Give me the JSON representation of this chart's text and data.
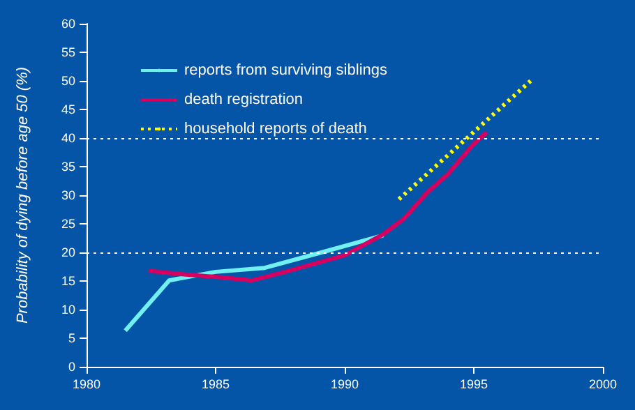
{
  "chart_data": {
    "type": "line",
    "ylabel": "Probability of dying before age 50 (%)",
    "xlim": [
      1980,
      2000
    ],
    "xticks": [
      1980,
      1985,
      1990,
      1995,
      2000
    ],
    "ylim": [
      0,
      60
    ],
    "yticks": [
      0,
      5,
      10,
      15,
      20,
      25,
      30,
      35,
      40,
      45,
      50,
      55,
      60
    ],
    "legend": "top left",
    "marker": "none",
    "grid": false,
    "ref_lines": [
      {
        "axis": "y",
        "value": 20,
        "color": "#ffffff",
        "line_style": "dotted"
      },
      {
        "axis": "y",
        "value": 40,
        "color": "#ffffff",
        "line_style": "dotted"
      }
    ],
    "series": [
      {
        "name": "reports from surviving siblings",
        "color": "#70f0f0",
        "line_style": "solid",
        "x": [
          1981.5,
          1983.2,
          1985,
          1986.9,
          1989.1,
          1991.5
        ],
        "values": [
          6.3,
          15.1,
          16.6,
          17.3,
          20,
          23
        ]
      },
      {
        "name": "death registration",
        "color": "#d8005f",
        "line_style": "solid",
        "x": [
          1982.4,
          1983.4,
          1985.3,
          1986.4,
          1987.7,
          1990,
          1991.5,
          1992.3,
          1993.2,
          1994,
          1995,
          1995.5
        ],
        "values": [
          16.8,
          16.3,
          15.6,
          15.1,
          16.6,
          19.5,
          23.2,
          25.9,
          30.5,
          33.7,
          39,
          41
        ]
      },
      {
        "name": "household reports of death",
        "color": "#ffff00",
        "line_style": "dotted",
        "x": [
          1992.1,
          1997.2
        ],
        "values": [
          29.3,
          50
        ]
      }
    ]
  }
}
